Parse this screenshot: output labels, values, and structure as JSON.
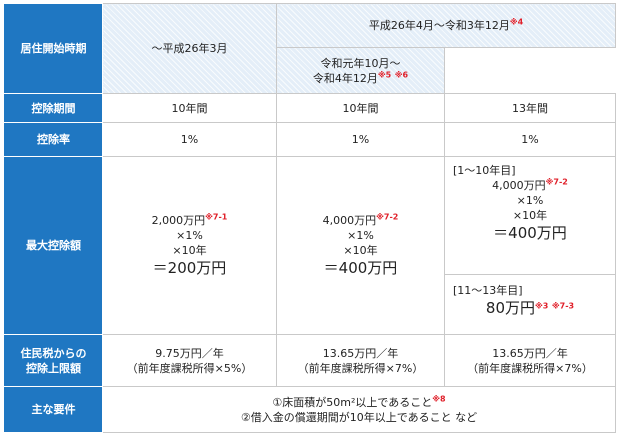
{
  "headers": {
    "start_period": "居住開始時期",
    "deduction_period": "控除期間",
    "deduction_rate": "控除率",
    "max_deduction": "最大控除額",
    "resident_tax_limit": [
      "住民税からの",
      "控除上限額"
    ],
    "requirements": "主な要件"
  },
  "periods": {
    "col1": "～平成26年3月",
    "col23": "平成26年4月～令和3年12月",
    "col23_note": "※4",
    "col3": [
      "令和元年10月～",
      "令和4年12月"
    ],
    "col3_notes": [
      "※5",
      "※6"
    ]
  },
  "deduction_period": [
    "10年間",
    "10年間",
    "13年間"
  ],
  "deduction_rate": [
    "1%",
    "1%",
    "1%"
  ],
  "max_deduction": {
    "col1": {
      "amount": "2,000万円",
      "note": "※7-1",
      "rate": "×1%",
      "years": "×10年",
      "total": "＝200万円"
    },
    "col2": {
      "amount": "4,000万円",
      "note": "※7-2",
      "rate": "×1%",
      "years": "×10年",
      "total": "＝400万円"
    },
    "col3a": {
      "label": "[1～10年目]",
      "amount": "4,000万円",
      "note": "※7-2",
      "rate": "×1%",
      "years": "×10年",
      "total": "＝400万円"
    },
    "col3b": {
      "label": "[11～13年目]",
      "total": "80万円",
      "notes": [
        "※3",
        "※7-3"
      ]
    }
  },
  "resident_tax_limit": [
    {
      "value": "9.75万円／年",
      "sub": "（前年度課税所得×5%）"
    },
    {
      "value": "13.65万円／年",
      "sub": "（前年度課税所得×7%）"
    },
    {
      "value": "13.65万円／年",
      "sub": "（前年度課税所得×7%）"
    }
  ],
  "requirements": {
    "line1": "①床面積が50m²以上であること",
    "line1_note": "※8",
    "line2": "②借入金の償還期間が10年以上であること など"
  },
  "colors": {
    "header_bg": "#1f77c2",
    "note_red": "#e0202a",
    "hatch": "#e4eef8"
  }
}
